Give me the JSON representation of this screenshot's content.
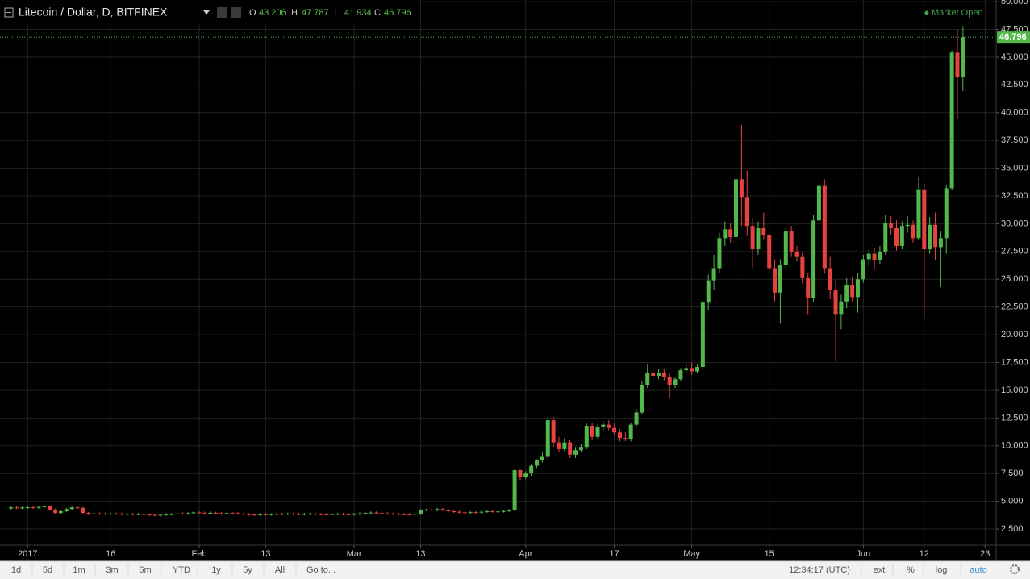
{
  "header": {
    "symbol": "Litecoin / Dollar, D, BITFINEX",
    "o": "O",
    "h": "H",
    "l": "L",
    "c": "C",
    "status": "Market Open"
  },
  "toolbar": {
    "ranges": [
      "1d",
      "5d",
      "1m",
      "3m",
      "6m",
      "YTD",
      "1y",
      "5y",
      "All"
    ],
    "goto": "Go to...",
    "clock": "12:34:17 (UTC)",
    "options": [
      "ext",
      "%",
      "log",
      "auto"
    ]
  },
  "chart_data": {
    "type": "candlestick",
    "up_color": "#53b84a",
    "down_color": "#e8423f",
    "grid": true,
    "xlim": [
      "2016-12-27",
      "2017-06-25"
    ],
    "xticks": [
      {
        "value": "2017-01-01",
        "label": "2017"
      },
      {
        "value": "2017-01-16",
        "label": "16"
      },
      {
        "value": "2017-02-01",
        "label": "Feb"
      },
      {
        "value": "2017-02-13",
        "label": "13"
      },
      {
        "value": "2017-03-01",
        "label": "Mar"
      },
      {
        "value": "2017-03-13",
        "label": "13"
      },
      {
        "value": "2017-04-01",
        "label": "Apr"
      },
      {
        "value": "2017-04-17",
        "label": "17"
      },
      {
        "value": "2017-05-01",
        "label": "May"
      },
      {
        "value": "2017-05-15",
        "label": "15"
      },
      {
        "value": "2017-06-01",
        "label": "Jun"
      },
      {
        "value": "2017-06-12",
        "label": "12"
      },
      {
        "value": "2017-06-23",
        "label": "23"
      }
    ],
    "ylim": [
      1.05,
      50.15
    ],
    "yticks": [
      {
        "value": 2.5,
        "label": "2.500"
      },
      {
        "value": 5,
        "label": "5.000"
      },
      {
        "value": 7.5,
        "label": "7.500"
      },
      {
        "value": 10,
        "label": "10.000"
      },
      {
        "value": 12.5,
        "label": "12.500"
      },
      {
        "value": 15,
        "label": "15.000"
      },
      {
        "value": 17.5,
        "label": "17.500"
      },
      {
        "value": 20,
        "label": "20.000"
      },
      {
        "value": 22.5,
        "label": "22.500"
      },
      {
        "value": 25,
        "label": "25.000"
      },
      {
        "value": 27.5,
        "label": "27.500"
      },
      {
        "value": 30,
        "label": "30.000"
      },
      {
        "value": 32.5,
        "label": "32.500"
      },
      {
        "value": 35,
        "label": "35.000"
      },
      {
        "value": 37.5,
        "label": "37.500"
      },
      {
        "value": 40,
        "label": "40.000"
      },
      {
        "value": 42.5,
        "label": "42.500"
      },
      {
        "value": 45,
        "label": "45.000"
      },
      {
        "value": 47.5,
        "label": "47.500"
      },
      {
        "value": 50,
        "label": "50.000"
      }
    ],
    "x": [
      "2016-12-29",
      "2016-12-30",
      "2016-12-31",
      "2017-01-01",
      "2017-01-02",
      "2017-01-03",
      "2017-01-04",
      "2017-01-05",
      "2017-01-06",
      "2017-01-07",
      "2017-01-08",
      "2017-01-09",
      "2017-01-10",
      "2017-01-11",
      "2017-01-12",
      "2017-01-13",
      "2017-01-14",
      "2017-01-15",
      "2017-01-16",
      "2017-01-17",
      "2017-01-18",
      "2017-01-19",
      "2017-01-20",
      "2017-01-21",
      "2017-01-22",
      "2017-01-23",
      "2017-01-24",
      "2017-01-25",
      "2017-01-26",
      "2017-01-27",
      "2017-01-28",
      "2017-01-29",
      "2017-01-30",
      "2017-01-31",
      "2017-02-01",
      "2017-02-02",
      "2017-02-03",
      "2017-02-04",
      "2017-02-05",
      "2017-02-06",
      "2017-02-07",
      "2017-02-08",
      "2017-02-09",
      "2017-02-10",
      "2017-02-11",
      "2017-02-12",
      "2017-02-13",
      "2017-02-14",
      "2017-02-15",
      "2017-02-16",
      "2017-02-17",
      "2017-02-18",
      "2017-02-19",
      "2017-02-20",
      "2017-02-21",
      "2017-02-22",
      "2017-02-23",
      "2017-02-24",
      "2017-02-25",
      "2017-02-26",
      "2017-02-27",
      "2017-02-28",
      "2017-03-01",
      "2017-03-02",
      "2017-03-03",
      "2017-03-04",
      "2017-03-05",
      "2017-03-06",
      "2017-03-07",
      "2017-03-08",
      "2017-03-09",
      "2017-03-10",
      "2017-03-11",
      "2017-03-12",
      "2017-03-13",
      "2017-03-14",
      "2017-03-15",
      "2017-03-16",
      "2017-03-17",
      "2017-03-18",
      "2017-03-19",
      "2017-03-20",
      "2017-03-21",
      "2017-03-22",
      "2017-03-23",
      "2017-03-24",
      "2017-03-25",
      "2017-03-26",
      "2017-03-27",
      "2017-03-28",
      "2017-03-29",
      "2017-03-30",
      "2017-03-31",
      "2017-04-01",
      "2017-04-02",
      "2017-04-03",
      "2017-04-04",
      "2017-04-05",
      "2017-04-06",
      "2017-04-07",
      "2017-04-08",
      "2017-04-09",
      "2017-04-10",
      "2017-04-11",
      "2017-04-12",
      "2017-04-13",
      "2017-04-14",
      "2017-04-15",
      "2017-04-16",
      "2017-04-17",
      "2017-04-18",
      "2017-04-19",
      "2017-04-20",
      "2017-04-21",
      "2017-04-22",
      "2017-04-23",
      "2017-04-24",
      "2017-04-25",
      "2017-04-26",
      "2017-04-27",
      "2017-04-28",
      "2017-04-29",
      "2017-04-30",
      "2017-05-01",
      "2017-05-02",
      "2017-05-03",
      "2017-05-04",
      "2017-05-05",
      "2017-05-06",
      "2017-05-07",
      "2017-05-08",
      "2017-05-09",
      "2017-05-10",
      "2017-05-11",
      "2017-05-12",
      "2017-05-13",
      "2017-05-14",
      "2017-05-15",
      "2017-05-16",
      "2017-05-17",
      "2017-05-18",
      "2017-05-19",
      "2017-05-20",
      "2017-05-21",
      "2017-05-22",
      "2017-05-23",
      "2017-05-24",
      "2017-05-25",
      "2017-05-26",
      "2017-05-27",
      "2017-05-28",
      "2017-05-29",
      "2017-05-30",
      "2017-05-31",
      "2017-06-01",
      "2017-06-02",
      "2017-06-03",
      "2017-06-04",
      "2017-06-05",
      "2017-06-06",
      "2017-06-07",
      "2017-06-08",
      "2017-06-09",
      "2017-06-10",
      "2017-06-11",
      "2017-06-12",
      "2017-06-13",
      "2017-06-14",
      "2017-06-15",
      "2017-06-16",
      "2017-06-17",
      "2017-06-18",
      "2017-06-19"
    ],
    "open": [
      4.35,
      4.45,
      4.4,
      4.43,
      4.46,
      4.42,
      4.5,
      4.55,
      4.25,
      3.95,
      4.1,
      4.3,
      4.45,
      4.4,
      3.95,
      3.85,
      3.9,
      3.88,
      3.86,
      3.9,
      3.87,
      3.84,
      3.86,
      3.83,
      3.85,
      3.8,
      3.78,
      3.74,
      3.78,
      3.82,
      3.85,
      3.9,
      3.88,
      3.92,
      4,
      3.97,
      3.95,
      3.96,
      3.93,
      3.9,
      3.94,
      3.92,
      3.88,
      3.84,
      3.8,
      3.78,
      3.82,
      3.79,
      3.83,
      3.86,
      3.84,
      3.88,
      3.86,
      3.83,
      3.85,
      3.87,
      3.84,
      3.82,
      3.8,
      3.84,
      3.86,
      3.83,
      3.81,
      3.85,
      3.9,
      3.95,
      3.98,
      3.94,
      3.91,
      3.88,
      3.86,
      3.84,
      3.82,
      3.8,
      3.86,
      4.2,
      4.25,
      4.18,
      4.3,
      4.22,
      4.1,
      4.05,
      4,
      3.96,
      4.02,
      3.98,
      4.05,
      4.1,
      4.06,
      4.08,
      4.12,
      4.2,
      7.8,
      7.2,
      7.5,
      8.2,
      8.7,
      9,
      12.3,
      10.3,
      9.7,
      10.3,
      9.2,
      9.6,
      9.9,
      11.8,
      10.8,
      11.7,
      11.9,
      11.6,
      11.2,
      10.7,
      10.6,
      11.9,
      13,
      15.5,
      16.6,
      16.3,
      16.6,
      16.2,
      15.5,
      16,
      16.8,
      17,
      16.7,
      17.1,
      22.9,
      24.9,
      26,
      28.7,
      29.5,
      28.8,
      34,
      32.4,
      29.8,
      27.7,
      29.6,
      29,
      26,
      23.8,
      26.3,
      29.3,
      27.5,
      27,
      25.1,
      23.3,
      30.3,
      33.4,
      26,
      24,
      21.8,
      23,
      24.5,
      23.4,
      25,
      26.8,
      27.3,
      26.7,
      27.5,
      30.1,
      29.6,
      28,
      29.8,
      29.9,
      28.7,
      33.1,
      27.7,
      29.9,
      27.9,
      28.7,
      33.2,
      45.4,
      43.206
    ],
    "high": [
      4.55,
      4.55,
      4.53,
      4.56,
      4.56,
      4.6,
      4.65,
      4.65,
      4.35,
      4.2,
      4.4,
      4.55,
      4.55,
      4.5,
      4.05,
      4,
      3.98,
      3.98,
      4,
      3.98,
      3.97,
      3.96,
      3.96,
      3.95,
      3.95,
      3.9,
      3.88,
      3.88,
      3.92,
      3.95,
      4,
      4,
      4.02,
      4.1,
      4.1,
      4.07,
      4.06,
      4.06,
      4.03,
      4.04,
      4.04,
      4.02,
      3.98,
      3.94,
      3.9,
      3.92,
      3.92,
      3.93,
      3.96,
      3.96,
      3.98,
      3.98,
      3.96,
      3.95,
      3.97,
      3.97,
      3.94,
      3.92,
      3.94,
      3.96,
      3.96,
      3.93,
      3.95,
      4,
      4.05,
      4.08,
      4.08,
      4.04,
      4.01,
      3.98,
      3.96,
      3.94,
      3.92,
      3.96,
      4.3,
      4.35,
      4.35,
      4.4,
      4.4,
      4.32,
      4.2,
      4.15,
      4.1,
      4.12,
      4.12,
      4.15,
      4.2,
      4.2,
      4.18,
      4.22,
      4.3,
      7.9,
      7.95,
      7.7,
      8.3,
      8.8,
      9.4,
      12.6,
      12.6,
      10.8,
      10.7,
      10.5,
      9.9,
      10.2,
      12,
      12.1,
      11.9,
      12.2,
      12.3,
      12,
      11.5,
      11.2,
      12.1,
      13.3,
      15.8,
      17.3,
      17,
      16.9,
      16.9,
      16.5,
      16.2,
      17,
      17.4,
      17.5,
      17.3,
      23.2,
      25.4,
      27.2,
      29.2,
      30.2,
      30.1,
      34.9,
      38.9,
      34.8,
      30.5,
      30.2,
      31,
      29.4,
      26.8,
      26.8,
      29.7,
      29.8,
      28,
      27.4,
      25.6,
      30.8,
      34.4,
      34,
      27,
      25,
      23.6,
      25.1,
      25.2,
      25.6,
      27.2,
      27.7,
      27.8,
      28,
      30.8,
      30.7,
      30.3,
      30.2,
      30.7,
      30.3,
      34.2,
      33.6,
      30.6,
      31,
      29.3,
      33.5,
      45.6,
      47.5,
      47.787
    ],
    "low": [
      4.25,
      4.3,
      4.3,
      4.33,
      4.32,
      4.32,
      4.4,
      4.15,
      3.85,
      3.85,
      4,
      4.2,
      4.3,
      3.85,
      3.75,
      3.75,
      3.78,
      3.76,
      3.76,
      3.77,
      3.74,
      3.74,
      3.73,
      3.73,
      3.7,
      3.68,
      3.64,
      3.64,
      3.68,
      3.72,
      3.75,
      3.78,
      3.78,
      3.82,
      3.87,
      3.85,
      3.85,
      3.83,
      3.8,
      3.8,
      3.82,
      3.78,
      3.74,
      3.7,
      3.68,
      3.68,
      3.69,
      3.69,
      3.73,
      3.74,
      3.74,
      3.76,
      3.73,
      3.73,
      3.75,
      3.74,
      3.72,
      3.7,
      3.7,
      3.74,
      3.73,
      3.71,
      3.71,
      3.75,
      3.8,
      3.85,
      3.84,
      3.81,
      3.78,
      3.76,
      3.74,
      3.72,
      3.7,
      3.7,
      3.76,
      4.1,
      4.08,
      4.08,
      4.12,
      4,
      3.95,
      3.9,
      3.86,
      3.86,
      3.88,
      3.88,
      3.95,
      3.96,
      3.98,
      3.98,
      4.02,
      4.1,
      6.9,
      7,
      7.3,
      8,
      8.5,
      8.8,
      9.9,
      9.4,
      9.5,
      8.9,
      8.9,
      9.4,
      9.7,
      10.5,
      10.6,
      11.4,
      11.4,
      11,
      10.4,
      10.4,
      10.4,
      11.7,
      12.8,
      15.2,
      15.9,
      16,
      15.9,
      14.3,
      15.2,
      15.8,
      16.5,
      16.4,
      16.5,
      16.9,
      22.2,
      24,
      25.6,
      28,
      28.3,
      24,
      29.8,
      28.9,
      26,
      27.2,
      28.6,
      25.5,
      23,
      21,
      26,
      27,
      26.6,
      24.6,
      21.8,
      23,
      30,
      25.5,
      23.2,
      17.6,
      20.5,
      22.4,
      23,
      22,
      24.7,
      26.2,
      25.9,
      26.4,
      27.2,
      29,
      27.6,
      27.7,
      29.2,
      28.3,
      28.5,
      21.5,
      27.3,
      26.7,
      24.3,
      27.3,
      33,
      39.5,
      41.934
    ],
    "close": [
      4.45,
      4.4,
      4.43,
      4.46,
      4.42,
      4.5,
      4.55,
      4.25,
      3.95,
      4.1,
      4.3,
      4.45,
      4.4,
      3.95,
      3.85,
      3.9,
      3.88,
      3.86,
      3.9,
      3.87,
      3.84,
      3.86,
      3.83,
      3.85,
      3.8,
      3.78,
      3.74,
      3.78,
      3.82,
      3.85,
      3.9,
      3.88,
      3.92,
      4,
      3.97,
      3.95,
      3.96,
      3.93,
      3.9,
      3.94,
      3.92,
      3.88,
      3.84,
      3.8,
      3.78,
      3.82,
      3.79,
      3.83,
      3.86,
      3.84,
      3.88,
      3.86,
      3.83,
      3.85,
      3.87,
      3.84,
      3.82,
      3.8,
      3.84,
      3.86,
      3.83,
      3.81,
      3.85,
      3.9,
      3.95,
      3.98,
      3.94,
      3.91,
      3.88,
      3.86,
      3.84,
      3.82,
      3.8,
      3.86,
      4.2,
      4.25,
      4.18,
      4.3,
      4.22,
      4.1,
      4.05,
      4,
      3.96,
      4.02,
      3.98,
      4.05,
      4.1,
      4.06,
      4.08,
      4.12,
      4.2,
      7.8,
      7.2,
      7.5,
      8.2,
      8.7,
      9,
      12.3,
      10.3,
      9.7,
      10.3,
      9.2,
      9.6,
      9.9,
      11.8,
      10.8,
      11.7,
      11.9,
      11.6,
      11.2,
      10.7,
      10.6,
      11.9,
      13,
      15.5,
      16.6,
      16.3,
      16.6,
      16.2,
      15.5,
      16,
      16.8,
      17,
      16.7,
      17.1,
      22.9,
      24.9,
      26,
      28.7,
      29.5,
      28.8,
      34,
      32.4,
      29.8,
      27.7,
      29.6,
      29,
      26,
      23.8,
      26.3,
      29.3,
      27.5,
      27,
      25.1,
      23.3,
      30.3,
      33.4,
      26,
      24,
      21.8,
      23,
      24.5,
      23.4,
      25,
      26.8,
      27.3,
      26.7,
      27.5,
      30.1,
      29.6,
      28,
      29.8,
      29.9,
      28.7,
      33.1,
      27.7,
      29.9,
      27.9,
      28.7,
      33.2,
      45.4,
      43.2,
      46.796
    ]
  }
}
